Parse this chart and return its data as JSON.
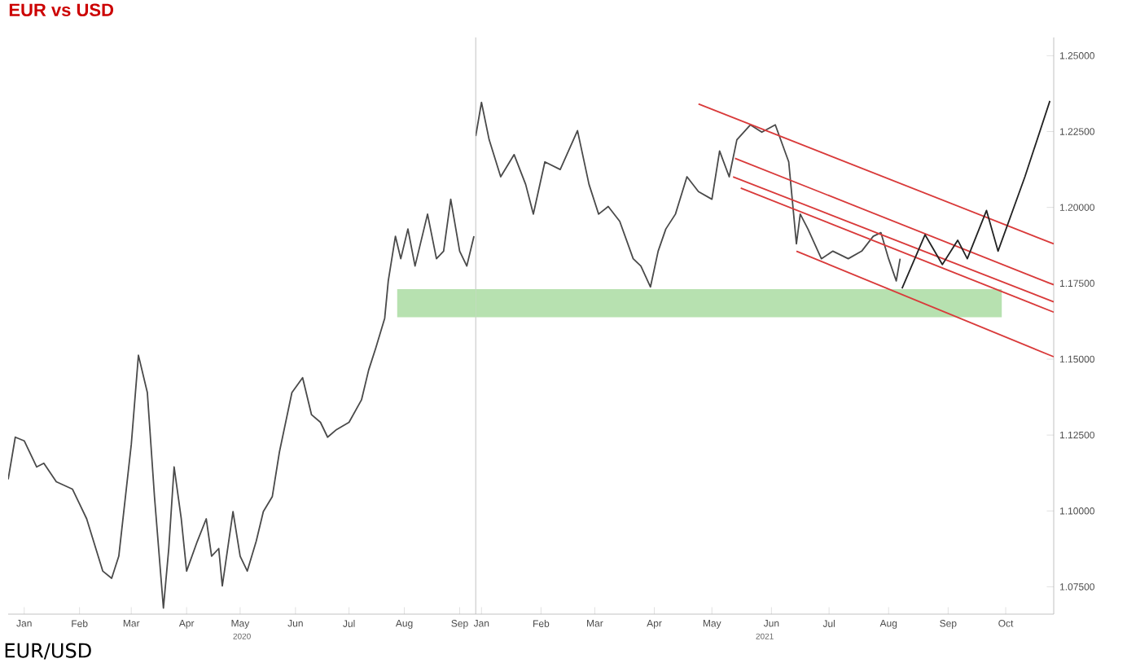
{
  "chart_data": [
    {
      "type": "line",
      "title": "EUR vs USD",
      "xlabel": "2020",
      "annotations": [
        "EUR/USD"
      ],
      "tick_labels": "x",
      "xlim": [
        "2019-12-23",
        "2020-09-10"
      ],
      "ylim": [
        1.066,
        1.256
      ],
      "xticks": [
        {
          "value": "2020-01-01",
          "label": "Jan"
        },
        {
          "value": "2020-02-01",
          "label": "Feb"
        },
        {
          "value": "2020-03-01",
          "label": "Mar"
        },
        {
          "value": "2020-04-01",
          "label": "Apr"
        },
        {
          "value": "2020-05-01",
          "label": "May"
        },
        {
          "value": "2020-06-01",
          "label": "Jun"
        },
        {
          "value": "2020-07-01",
          "label": "Jul"
        },
        {
          "value": "2020-08-01",
          "label": "Aug"
        },
        {
          "value": "2020-09-01",
          "label": "Sep"
        }
      ],
      "series": [
        {
          "color": "#b7e1b0",
          "x": [
            "2020-07-28",
            "2020-09-10"
          ],
          "values": [
            null,
            null
          ],
          "upper": [
            1.1731,
            1.1731
          ],
          "lower": [
            1.1638,
            1.1638
          ]
        },
        {
          "color": "#4a4a4a",
          "x": [
            "2019-12-23",
            "2019-12-27",
            "2020-01-01",
            "2020-01-08",
            "2020-01-12",
            "2020-01-19",
            "2020-01-28",
            "2020-02-01",
            "2020-02-05",
            "2020-02-14",
            "2020-02-19",
            "2020-02-23",
            "2020-03-01",
            "2020-03-05",
            "2020-03-10",
            "2020-03-14",
            "2020-03-19",
            "2020-03-22",
            "2020-03-25",
            "2020-03-29",
            "2020-04-01",
            "2020-04-07",
            "2020-04-12",
            "2020-04-15",
            "2020-04-19",
            "2020-04-21",
            "2020-04-27",
            "2020-05-01",
            "2020-05-05",
            "2020-05-10",
            "2020-05-14",
            "2020-05-19",
            "2020-05-23",
            "2020-05-30",
            "2020-06-05",
            "2020-06-10",
            "2020-06-15",
            "2020-06-19",
            "2020-06-24",
            "2020-07-01",
            "2020-07-08",
            "2020-07-12",
            "2020-07-16",
            "2020-07-21",
            "2020-07-23",
            "2020-07-27",
            "2020-07-30",
            "2020-08-03",
            "2020-08-07",
            "2020-08-14",
            "2020-08-19",
            "2020-08-23",
            "2020-08-27",
            "2020-09-01",
            "2020-09-05",
            "2020-09-09"
          ],
          "values": [
            1.1104,
            1.1243,
            1.1231,
            1.1145,
            1.1157,
            1.1096,
            1.1072,
            1.1023,
            1.0974,
            1.0802,
            1.0778,
            1.0851,
            1.1219,
            1.1513,
            1.139,
            1.1047,
            1.068,
            1.0876,
            1.1145,
            1.0974,
            1.0802,
            1.09,
            1.0974,
            1.0851,
            1.0876,
            1.0753,
            1.0998,
            1.0851,
            1.0802,
            1.09,
            1.0998,
            1.1047,
            1.1194,
            1.139,
            1.1439,
            1.1317,
            1.1292,
            1.1243,
            1.1268,
            1.1292,
            1.1366,
            1.1464,
            1.1537,
            1.1635,
            1.1758,
            1.1905,
            1.1831,
            1.1929,
            1.1807,
            1.1978,
            1.1831,
            1.1856,
            1.2027,
            1.1856,
            1.1807,
            1.1905
          ]
        }
      ]
    },
    {
      "type": "line",
      "xlabel": "2021",
      "xlim": [
        "2020-12-29",
        "2021-10-26"
      ],
      "ylim": [
        1.066,
        1.256
      ],
      "xticks": [
        {
          "value": "2021-01-01",
          "label": "Jan"
        },
        {
          "value": "2021-02-01",
          "label": "Feb"
        },
        {
          "value": "2021-03-01",
          "label": "Mar"
        },
        {
          "value": "2021-04-01",
          "label": "Apr"
        },
        {
          "value": "2021-05-01",
          "label": "May"
        },
        {
          "value": "2021-06-01",
          "label": "Jun"
        },
        {
          "value": "2021-07-01",
          "label": "Jul"
        },
        {
          "value": "2021-08-01",
          "label": "Aug"
        },
        {
          "value": "2021-09-01",
          "label": "Sep"
        },
        {
          "value": "2021-10-01",
          "label": "Oct"
        }
      ],
      "yticks": [
        {
          "value": 1.075,
          "label": "1.07500"
        },
        {
          "value": 1.1,
          "label": "1.10000"
        },
        {
          "value": 1.125,
          "label": "1.12500"
        },
        {
          "value": 1.15,
          "label": "1.15000"
        },
        {
          "value": 1.175,
          "label": "1.17500"
        },
        {
          "value": 1.2,
          "label": "1.20000"
        },
        {
          "value": 1.225,
          "label": "1.22500"
        },
        {
          "value": 1.25,
          "label": "1.25000"
        }
      ],
      "series": [
        {
          "color": "#b7e1b0",
          "x": [
            "2020-12-29",
            "2021-09-29"
          ],
          "values": [
            null,
            null
          ],
          "upper": [
            1.1731,
            1.1731
          ],
          "lower": [
            1.1638,
            1.1638
          ]
        },
        {
          "color": "#4a4a4a",
          "x": [
            "2020-12-29",
            "2021-01-01",
            "2021-01-05",
            "2021-01-11",
            "2021-01-18",
            "2021-01-24",
            "2021-01-28",
            "2021-02-03",
            "2021-02-11",
            "2021-02-20",
            "2021-02-26",
            "2021-03-03",
            "2021-03-08",
            "2021-03-14",
            "2021-03-21",
            "2021-03-25",
            "2021-03-30",
            "2021-04-03",
            "2021-04-07",
            "2021-04-12",
            "2021-04-18",
            "2021-04-24",
            "2021-05-01",
            "2021-05-05",
            "2021-05-10",
            "2021-05-14",
            "2021-05-21",
            "2021-05-27",
            "2021-06-03",
            "2021-06-10",
            "2021-06-14",
            "2021-06-16",
            "2021-06-20",
            "2021-06-27",
            "2021-07-03",
            "2021-07-11",
            "2021-07-18",
            "2021-07-24",
            "2021-07-28",
            "2021-08-01",
            "2021-08-05",
            "2021-08-07"
          ],
          "values": [
            1.2235,
            1.2346,
            1.2223,
            1.2101,
            1.2174,
            1.2076,
            1.1978,
            1.215,
            1.2125,
            1.2253,
            1.2076,
            1.1978,
            1.2003,
            1.1954,
            1.1831,
            1.1807,
            1.1738,
            1.1856,
            1.1929,
            1.1978,
            1.2101,
            1.2052,
            1.2027,
            1.2186,
            1.2101,
            1.2223,
            1.2272,
            1.2248,
            1.2272,
            1.215,
            1.188,
            1.1978,
            1.1929,
            1.1831,
            1.1856,
            1.1831,
            1.1856,
            1.1905,
            1.1917,
            1.1831,
            1.1758,
            1.1831
          ]
        },
        {
          "color": "#d93a3a",
          "x": [
            "2021-04-24",
            "2021-10-26"
          ],
          "values": [
            1.2341,
            1.188
          ]
        },
        {
          "color": "#d93a3a",
          "x": [
            "2021-05-13",
            "2021-10-26"
          ],
          "values": [
            1.2162,
            1.1745
          ]
        },
        {
          "color": "#d93a3a",
          "x": [
            "2021-05-12",
            "2021-10-26"
          ],
          "values": [
            1.2101,
            1.1689
          ]
        },
        {
          "color": "#d93a3a",
          "x": [
            "2021-05-16",
            "2021-10-26"
          ],
          "values": [
            1.2064,
            1.1655
          ]
        },
        {
          "color": "#d93a3a",
          "x": [
            "2021-06-14",
            "2021-10-26"
          ],
          "values": [
            1.1856,
            1.1508
          ]
        },
        {
          "color": "#222222",
          "x": [
            "2021-08-08",
            "2021-08-20",
            "2021-08-29",
            "2021-09-06",
            "2021-09-11",
            "2021-09-21",
            "2021-09-27",
            "2021-10-11",
            "2021-10-24"
          ],
          "values": [
            1.1733,
            1.191,
            1.1812,
            1.1892,
            1.1831,
            1.199,
            1.1856,
            1.2101,
            1.2351
          ]
        }
      ]
    }
  ]
}
